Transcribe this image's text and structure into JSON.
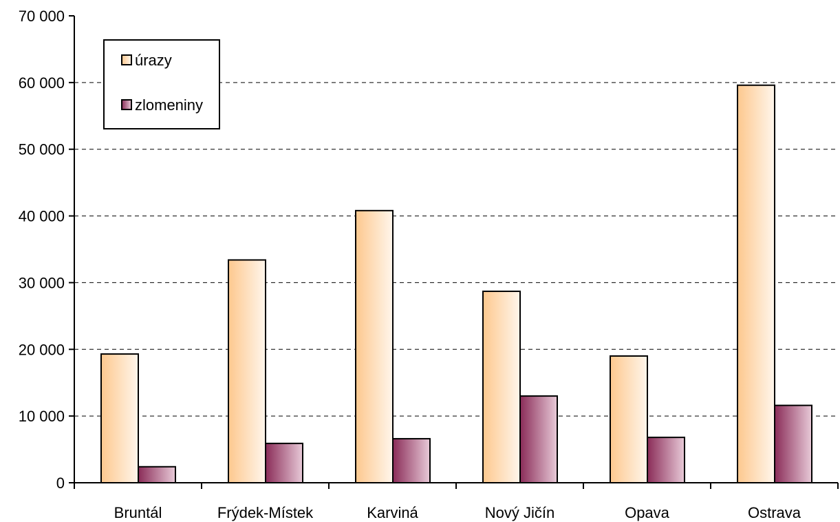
{
  "chart_data": {
    "type": "bar",
    "title": "",
    "xlabel": "",
    "ylabel": "",
    "categories": [
      "Bruntál",
      "Frýdek-Místek",
      "Karviná",
      "Nový Jičín",
      "Opava",
      "Ostrava"
    ],
    "series": [
      {
        "name": "úrazy",
        "values": [
          19300,
          33400,
          40800,
          28700,
          19000,
          59600
        ],
        "color_start": "#fdc88e",
        "color_end": "#fff6ec"
      },
      {
        "name": "zlomeniny",
        "values": [
          2400,
          5900,
          6600,
          13000,
          6800,
          11600
        ],
        "color_start": "#8a2c58",
        "color_end": "#e8cad8"
      }
    ],
    "ylim": [
      0,
      70000
    ],
    "y_ticks": [
      0,
      10000,
      20000,
      30000,
      40000,
      50000,
      60000,
      70000
    ],
    "y_tick_labels": [
      "0",
      "10 000",
      "20 000",
      "30 000",
      "40 000",
      "50 000",
      "60 000",
      "70 000"
    ],
    "grid": "dashed horizontal",
    "legend_position": "top-left"
  }
}
